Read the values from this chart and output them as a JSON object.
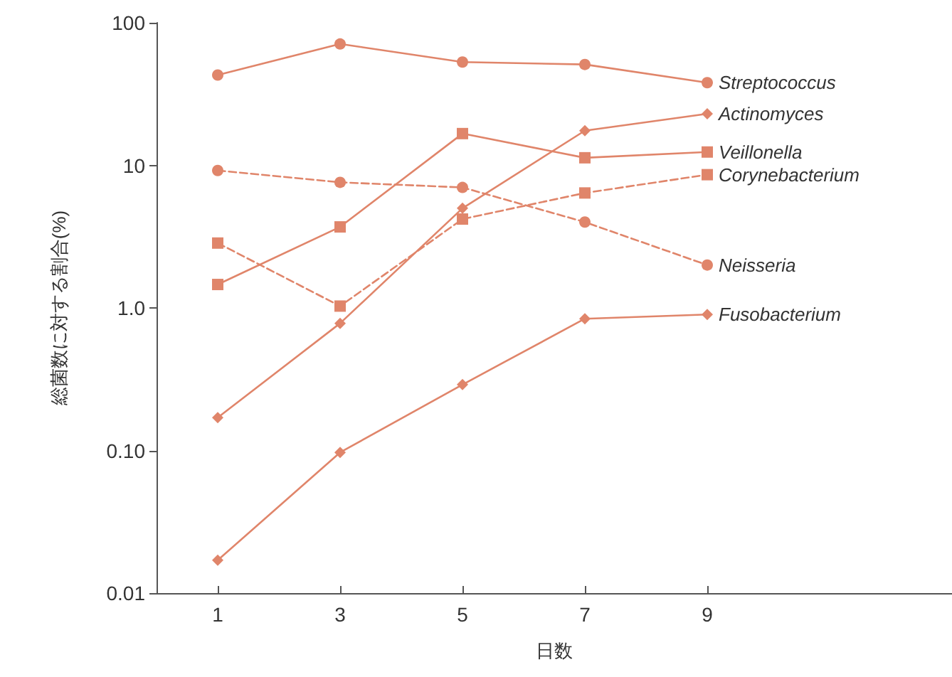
{
  "chart_data": {
    "type": "line",
    "xlabel": "日数",
    "ylabel": "総菌数に対する割合(%)",
    "x": [
      1,
      3,
      5,
      7,
      9
    ],
    "xlim": [
      0,
      13
    ],
    "xticks": [
      1,
      3,
      5,
      7,
      9
    ],
    "ylim": [
      0.01,
      100
    ],
    "yticks": [
      100,
      10,
      {
        "value": 1,
        "label": "1.0"
      },
      {
        "value": 0.1,
        "label": "0.10"
      },
      0.01
    ],
    "log": true,
    "grid": false,
    "legend": false,
    "series": [
      {
        "name": "Streptococcus",
        "color": "#e0856a",
        "marker": "circle",
        "line_style": "solid",
        "values": [
          43,
          71,
          53,
          51,
          38
        ]
      },
      {
        "name": "Actinomyces",
        "color": "#e0856a",
        "marker": "diamond",
        "line_style": "solid",
        "values": [
          0.17,
          0.78,
          5.0,
          17.5,
          23
        ]
      },
      {
        "name": "Veillonella",
        "color": "#e0856a",
        "marker": "square",
        "line_style": "solid",
        "values": [
          1.46,
          3.7,
          16.7,
          11.3,
          12.4
        ]
      },
      {
        "name": "Corynebacterium",
        "color": "#e0856a",
        "marker": "square",
        "line_style": "dashed",
        "values": [
          2.85,
          1.03,
          4.2,
          6.4,
          8.6
        ]
      },
      {
        "name": "Neisseria",
        "color": "#e0856a",
        "marker": "circle",
        "line_style": "dashed",
        "values": [
          9.2,
          7.6,
          7.0,
          4.0,
          2.0
        ]
      },
      {
        "name": "Fusobacterium",
        "color": "#e0856a",
        "marker": "diamond",
        "line_style": "solid",
        "values": [
          0.017,
          0.097,
          0.29,
          0.84,
          0.9
        ]
      }
    ]
  }
}
